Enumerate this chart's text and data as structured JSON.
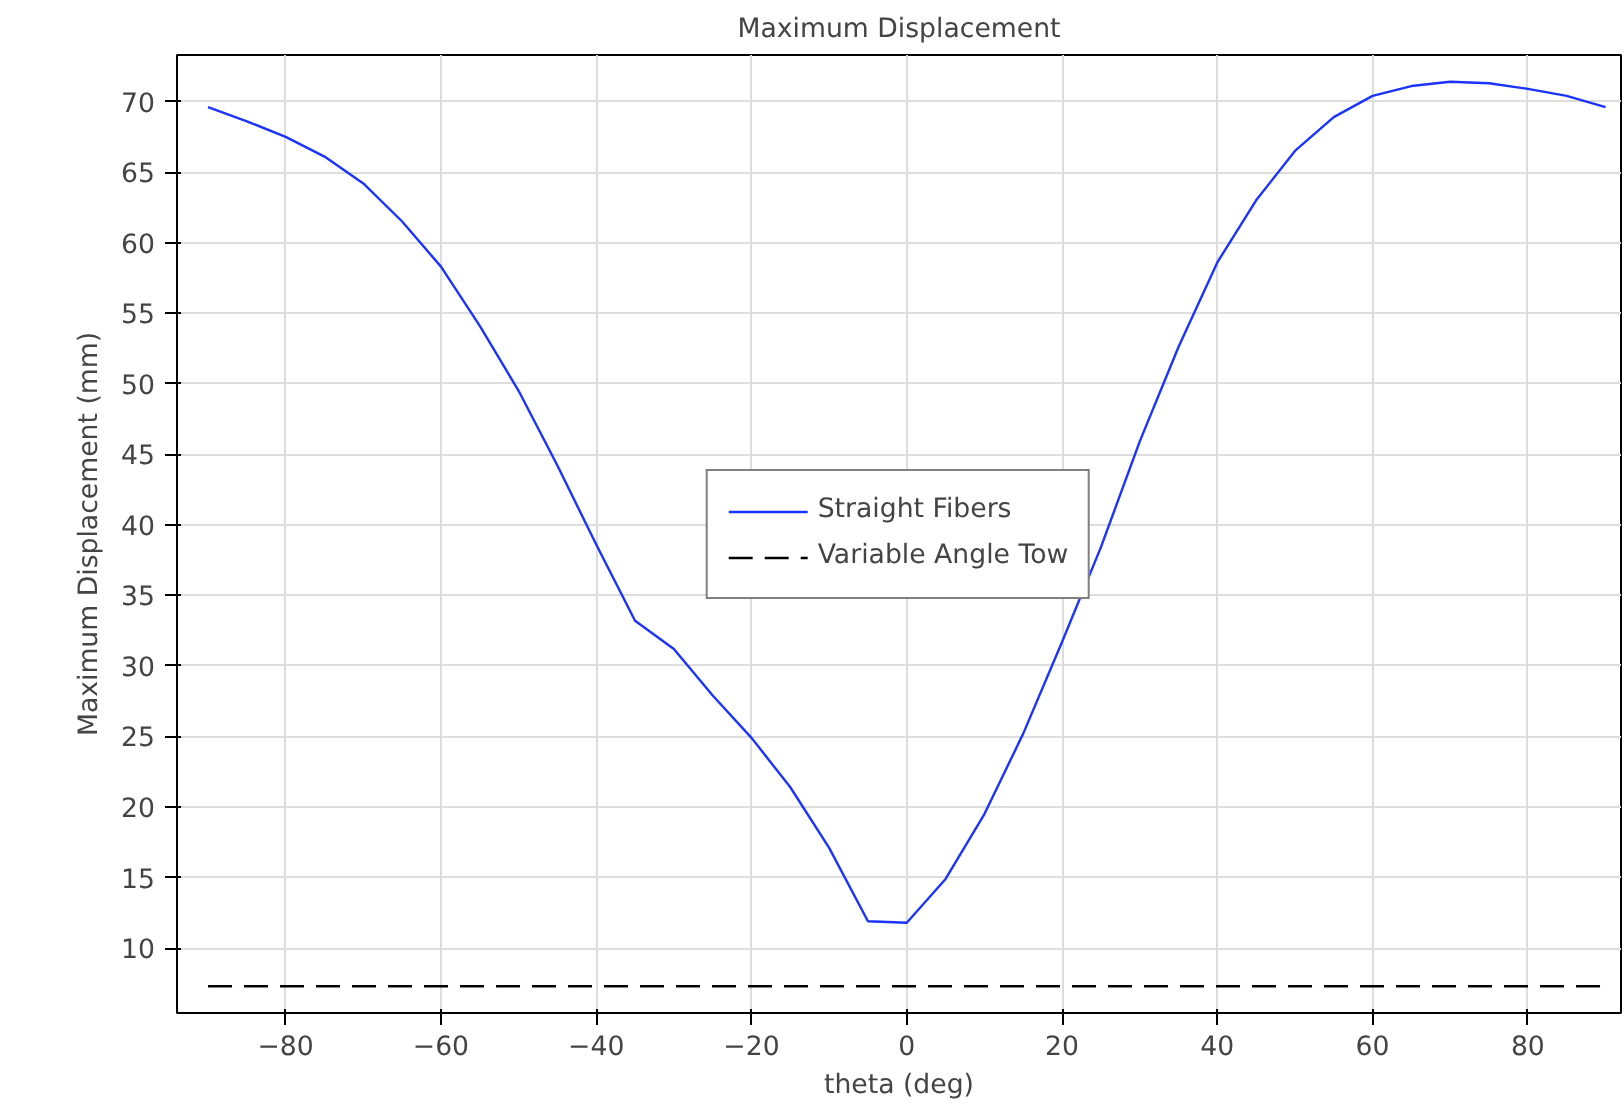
{
  "chart_data": {
    "type": "line",
    "title": "Maximum Displacement",
    "xlabel": "theta (deg)",
    "ylabel": "Maximum Displacement (mm)",
    "x": [
      -90,
      -85,
      -80,
      -75,
      -70,
      -65,
      -60,
      -55,
      -50,
      -45,
      -40,
      -35,
      -30,
      -25,
      -20,
      -15,
      -10,
      -5,
      0,
      5,
      10,
      15,
      20,
      25,
      30,
      35,
      40,
      45,
      50,
      55,
      60,
      65,
      70,
      75,
      80,
      85,
      90
    ],
    "series": [
      {
        "name": "Straight Fibers",
        "color": "#1a33ff",
        "line_style": "solid",
        "values": [
          69.6,
          68.6,
          67.5,
          66.1,
          64.2,
          61.5,
          58.3,
          54.1,
          49.5,
          44.2,
          38.6,
          33.2,
          31.2,
          27.9,
          24.9,
          21.4,
          17.1,
          11.9,
          11.8,
          14.9,
          19.5,
          25.2,
          31.7,
          38.4,
          45.9,
          52.6,
          58.6,
          63.0,
          66.5,
          68.9,
          70.4,
          71.1,
          71.4,
          71.3,
          70.9,
          70.4,
          69.6
        ]
      },
      {
        "name": "Variable Angle Tow",
        "color": "#000000",
        "line_style": "dashed",
        "x": [
          -90,
          90
        ],
        "values": [
          7.3,
          7.3
        ]
      }
    ],
    "xlim": [
      -94,
      92
    ],
    "ylim": [
      5.4,
      73.3
    ],
    "xticks": [
      -80,
      -60,
      -40,
      -20,
      0,
      20,
      40,
      60,
      80
    ],
    "yticks": [
      10,
      15,
      20,
      25,
      30,
      35,
      40,
      45,
      50,
      55,
      60,
      65,
      70
    ],
    "grid": true,
    "legend": "center",
    "marker": "none"
  }
}
